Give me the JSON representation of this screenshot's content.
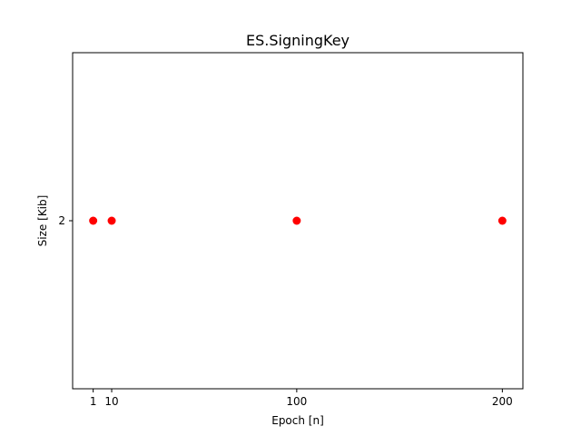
{
  "chart_data": {
    "type": "scatter",
    "title": "ES.SigningKey",
    "xlabel": "Epoch [n]",
    "ylabel": "Size [Kib]",
    "x": [
      1,
      10,
      100,
      200
    ],
    "y": [
      2,
      2,
      2,
      2
    ],
    "xticks": [
      1,
      10,
      100,
      200
    ],
    "xtick_labels": [
      "1",
      "10",
      "100",
      "200"
    ],
    "yticks": [
      2
    ],
    "ytick_labels": [
      "2"
    ],
    "xlim": [
      -9.0,
      210.0
    ],
    "ylim": [
      1.945,
      2.055
    ],
    "marker_color": "#ff0000",
    "grid": false,
    "legend": "none"
  }
}
